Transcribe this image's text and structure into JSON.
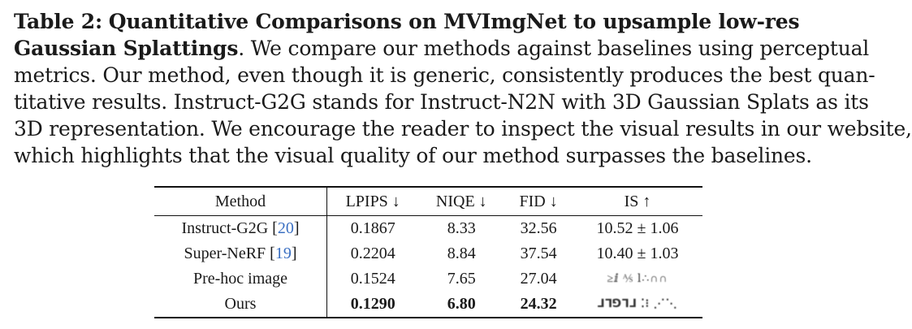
{
  "caption": {
    "label": "Table 2:",
    "title": "Quantitative Comparisons on MVImgNet to upsample low-res",
    "title_cont": "Gaussian Splattings",
    "line1_rest": ". We compare our methods against baselines using perceptual",
    "line2": "metrics. Our method, even though it is generic, consistently produces the best quan-",
    "line3": "titative results. Instruct-G2G stands for Instruct-N2N with 3D Gaussian Splats as its",
    "line4": "3D representation. We encourage the reader to inspect the visual results in our website,",
    "line5": "which highlights that the visual quality of our method surpasses the baselines."
  },
  "table": {
    "headers": [
      "Method",
      "LPIPS ↓",
      "NIQE ↓",
      "FID ↓",
      "IS ↑"
    ],
    "rows": [
      {
        "method": "Instruct-G2G",
        "ref": "20",
        "lpips": "0.1867",
        "niqe": "8.33",
        "fid": "32.56",
        "is": "10.52 ± 1.06"
      },
      {
        "method": "Super-NeRF",
        "ref": "19",
        "lpips": "0.2204",
        "niqe": "8.84",
        "fid": "37.54",
        "is": "10.40 ± 1.03"
      },
      {
        "method": "Pre-hoc image",
        "ref": "",
        "lpips": "0.1524",
        "niqe": "7.65",
        "fid": "27.04",
        "is": "≥ⅈ ⅍ ⅼ∴∩∩"
      },
      {
        "method": "Ours",
        "ref": "",
        "lpips": "0.1290",
        "niqe": "6.80",
        "fid": "24.32",
        "is": "⅃⅂⅁⅂⅃ ⁚⁝ ⋰⋱"
      }
    ]
  }
}
